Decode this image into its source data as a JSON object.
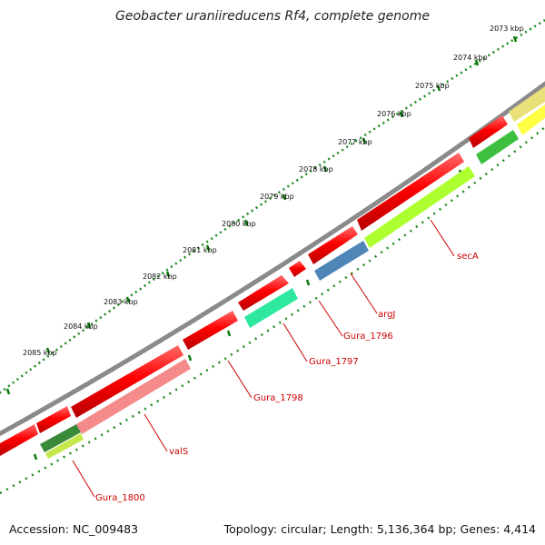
{
  "title": "Geobacter uraniireducens Rf4, complete genome",
  "footer": {
    "accession": "Accession: NC_009483",
    "summary": "Topology: circular; Length: 5,136,364 bp; Genes: 4,414"
  },
  "ruler": {
    "unit": "kbp",
    "ticks": [
      "2073 kbp",
      "2074 kbp",
      "2075 kbp",
      "2076 kbp",
      "2077 kbp",
      "2078 kbp",
      "2079 kbp",
      "2080 kbp",
      "2081 kbp",
      "2082 kbp",
      "2083 kbp",
      "2084 kbp",
      "2085 kbp"
    ]
  },
  "genes": [
    {
      "label": "secA",
      "color": "#adff2f"
    },
    {
      "label": "argJ",
      "color": "#4682b4"
    },
    {
      "label": "Gura_1796",
      "color": "#ff0000"
    },
    {
      "label": "Gura_1797",
      "color": "#00fa9a"
    },
    {
      "label": "Gura_1798",
      "color": "#ff0000"
    },
    {
      "label": "valS",
      "color": "#f08080"
    },
    {
      "label": "Gura_1800",
      "color": "#228b22"
    }
  ],
  "colors": {
    "cds_forward": "#ff0000",
    "backbone": "#808080",
    "tick": "#008000"
  }
}
